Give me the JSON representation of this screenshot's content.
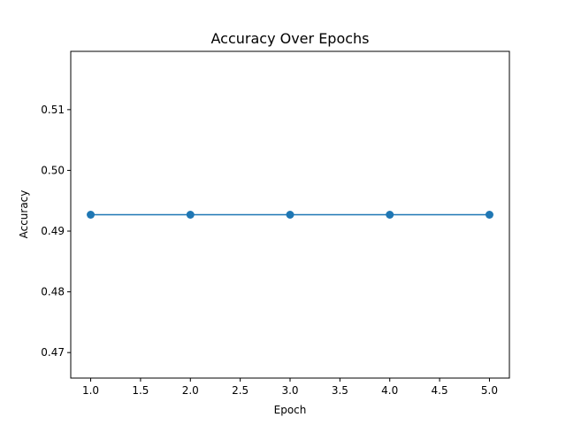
{
  "chart_data": {
    "type": "line",
    "title": "Accuracy Over Epochs",
    "xlabel": "Epoch",
    "ylabel": "Accuracy",
    "xlim": [
      0.8,
      5.2
    ],
    "ylim": [
      0.4658,
      0.5196
    ],
    "x_ticks": [
      1.0,
      1.5,
      2.0,
      2.5,
      3.0,
      3.5,
      4.0,
      4.5,
      5.0
    ],
    "x_tick_labels": [
      "1.0",
      "1.5",
      "2.0",
      "2.5",
      "3.0",
      "3.5",
      "4.0",
      "4.5",
      "5.0"
    ],
    "y_ticks": [
      0.47,
      0.48,
      0.49,
      0.5,
      0.51
    ],
    "y_tick_labels": [
      "0.47",
      "0.48",
      "0.49",
      "0.50",
      "0.51"
    ],
    "grid": false,
    "legend": null,
    "series": [
      {
        "x": [
          1,
          2,
          3,
          4,
          5
        ],
        "values": [
          0.4927,
          0.4927,
          0.4927,
          0.4927,
          0.4927
        ],
        "color": "#1f77b4",
        "marker": "circle"
      }
    ]
  }
}
